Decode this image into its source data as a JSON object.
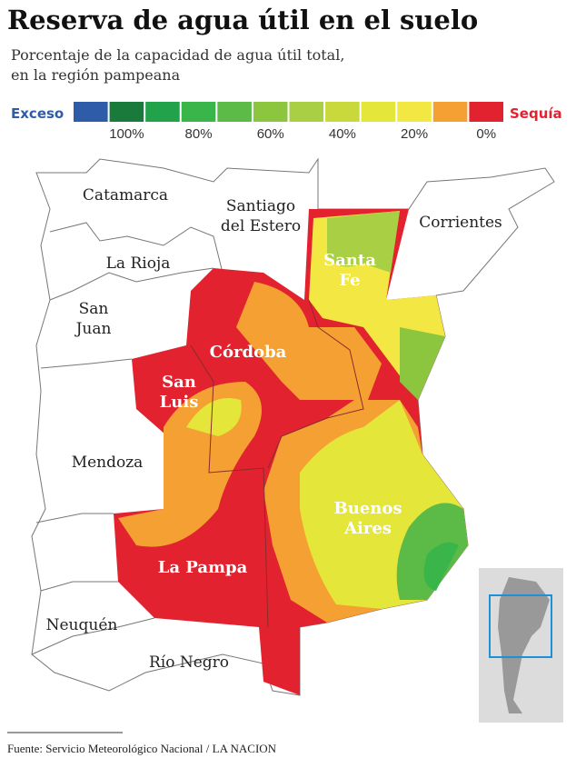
{
  "header": {
    "title": "Reserva de agua útil en el suelo",
    "subtitle": [
      "Porcentaje de la capacidad de agua útil total,",
      "en la región pampeana"
    ]
  },
  "legend": {
    "left_label": "Exceso",
    "right_label": "Sequía",
    "colors": [
      "#2e5ca8",
      "#1a7a3c",
      "#22a24a",
      "#3ab54a",
      "#5cba47",
      "#8cc63f",
      "#a9cf45",
      "#c9d83b",
      "#e5e63a",
      "#f3e843",
      "#f5a033",
      "#e2232f"
    ],
    "ticks": [
      "100%",
      "80%",
      "60%",
      "40%",
      "20%",
      "0%"
    ]
  },
  "map": {
    "provinces": [
      {
        "lines": [
          "Catamarca"
        ]
      },
      {
        "lines": [
          "Santiago",
          "del Estero"
        ]
      },
      {
        "lines": [
          "Corrientes"
        ]
      },
      {
        "lines": [
          "La Rioja"
        ]
      },
      {
        "lines": [
          "San",
          "Juan"
        ]
      },
      {
        "lines": [
          "Mendoza"
        ]
      },
      {
        "lines": [
          "Neuquén"
        ]
      },
      {
        "lines": [
          "Río Negro"
        ]
      },
      {
        "lines": [
          "Santa",
          "Fe"
        ]
      },
      {
        "lines": [
          "Córdoba"
        ]
      },
      {
        "lines": [
          "San",
          "Luis"
        ]
      },
      {
        "lines": [
          "La Pampa"
        ]
      },
      {
        "lines": [
          "Buenos",
          "Aires"
        ]
      }
    ]
  },
  "footer": {
    "source": "Fuente: Servicio Meteorológico Nacional / LA NACION"
  }
}
